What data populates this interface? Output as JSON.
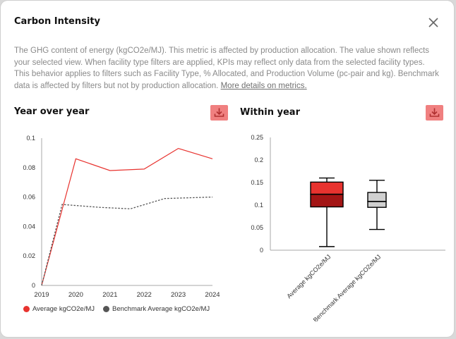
{
  "modal": {
    "title": "Carbon Intensity",
    "description": "The GHG content of energy (kgCO2e/MJ). This metric is affected by production allocation. The value shown reflects your selected view. When facility type filters are applied, KPIs may reflect only data from the selected facility types. This behavior applies to filters such as Facility Type, % Allocated, and Production Volume (pc-pair and kg). Benchmark data is affected by filters but not by production allocation.",
    "details_link": "More details on metrics.",
    "close_icon": "close-icon"
  },
  "year_over_year": {
    "title": "Year over year",
    "download_icon": "download-icon"
  },
  "within_year": {
    "title": "Within year",
    "download_icon": "download-icon"
  },
  "chart_data": [
    {
      "type": "line",
      "x": [
        2019,
        2020,
        2021,
        2022,
        2023,
        2024
      ],
      "x_ticks": [
        "2019",
        "2020",
        "2021",
        "2022",
        "2023",
        "2024"
      ],
      "ylim": [
        0,
        0.1
      ],
      "y_ticks": [
        "0",
        "0.02",
        "0.04",
        "0.06",
        "0.08",
        "0.1"
      ],
      "grid": false,
      "legend_position": "bottom",
      "series": [
        {
          "name": "Average kgCO2e/MJ",
          "color": "#e8332f",
          "style": "solid",
          "points": [
            [
              2019,
              0
            ],
            [
              2020,
              0.086
            ],
            [
              2021,
              0.078
            ],
            [
              2022,
              0.079
            ],
            [
              2023,
              0.093
            ],
            [
              2024,
              0.086
            ]
          ]
        },
        {
          "name": "Benchmark Average kgCO2e/MJ",
          "color": "#555555",
          "style": "dashed",
          "points": [
            [
              2019,
              0
            ],
            [
              2019.6,
              0.055
            ],
            [
              2020.7,
              0.053
            ],
            [
              2021.6,
              0.052
            ],
            [
              2022.6,
              0.059
            ],
            [
              2024,
              0.06
            ]
          ]
        }
      ]
    },
    {
      "type": "box",
      "ylim": [
        0,
        0.25
      ],
      "y_ticks": [
        "0",
        "0.05",
        "0.1",
        "0.15",
        "0.2",
        "0.25"
      ],
      "grid": false,
      "categories": [
        "Average kgCO2e/MJ",
        "Benchmark Average kgCO2e/MJ"
      ],
      "boxes": [
        {
          "min": 0.008,
          "q1": 0.096,
          "median": 0.124,
          "q3": 0.151,
          "max": 0.16,
          "color": "#e8332f",
          "color_lower": "#a31515"
        },
        {
          "min": 0.046,
          "q1": 0.095,
          "median": 0.108,
          "q3": 0.128,
          "max": 0.155,
          "color": "#d0d0d0",
          "color_lower": "#d0d0d0"
        }
      ]
    }
  ]
}
